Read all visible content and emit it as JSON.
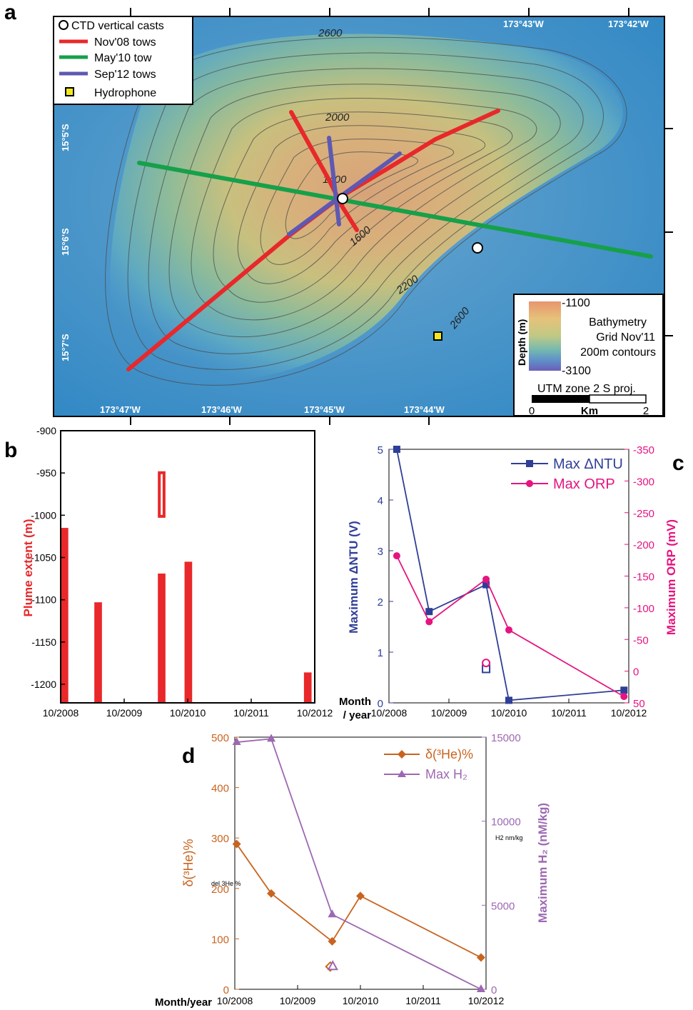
{
  "panel_letters": [
    "a",
    "b",
    "c",
    "d"
  ],
  "map": {
    "legend": [
      {
        "label": "CTD vertical casts",
        "symbol": "open-circle"
      },
      {
        "label": "Nov'08 tows",
        "color": "#e8282a"
      },
      {
        "label": "May'10 tow",
        "color": "#16a04a"
      },
      {
        "label": "Sep'12 tows",
        "color": "#5d59b3"
      },
      {
        "label": "Hydrophone",
        "symbol": "yellow-square"
      }
    ],
    "lon_labels": [
      "173°47'W",
      "173°46'W",
      "173°45'W",
      "173°44'W",
      "173°43'W",
      "173°42'W"
    ],
    "lat_labels": [
      "15°5'S",
      "15°6'S",
      "15°7'S"
    ],
    "contour_labels": [
      "2600",
      "2000",
      "1400",
      "1600",
      "2200",
      "2600"
    ],
    "colorbar": {
      "title": "Depth (m)",
      "top_label": "-1100",
      "bottom_label": "-3100",
      "lines": [
        "Bathymetry",
        "Grid Nov'11",
        "200m contours"
      ],
      "projection": "UTM zone 2 S proj.",
      "scale_labels": [
        "0",
        "Km",
        "2"
      ]
    }
  },
  "panels": {
    "b": {
      "type": "bar",
      "ylabel": "Plume extent (m)",
      "yticks": [
        "-900",
        "-950",
        "-1000",
        "-1050",
        "-1100",
        "-1150",
        "-1200"
      ],
      "xticks": [
        "10/2008",
        "10/2009",
        "10/2010",
        "10/2011",
        "10/2012"
      ]
    },
    "c": {
      "type": "line",
      "ylabel_left": "Maximum ΔNTU (V)",
      "ylabel_right": "Maximum ORP (mV)",
      "yticks_left": [
        "0",
        "1",
        "2",
        "3",
        "4",
        "5"
      ],
      "yticks_right": [
        "50",
        "0",
        "-50",
        "-100",
        "-150",
        "-200",
        "-250",
        "-300",
        "-350"
      ],
      "xticks": [
        "10/2008",
        "10/2009",
        "10/2010",
        "10/2011",
        "10/2012"
      ],
      "month_year_label": [
        "Month",
        "/ year"
      ],
      "legend": [
        "Max ΔNTU",
        "Max ORP"
      ]
    },
    "d": {
      "type": "line",
      "ylabel_left": "δ(³He)%",
      "ylabel_right": "Maximum H₂ (nM/kg)",
      "yticks_left": [
        "0",
        "100",
        "200",
        "300",
        "400",
        "500"
      ],
      "yticks_right": [
        "0",
        "5000",
        "10000",
        "15000"
      ],
      "xticks": [
        "10/2008",
        "10/2009",
        "10/2010",
        "10/2011",
        "10/2012"
      ],
      "month_year_label": "Month/year",
      "legend": [
        "δ(³He)%",
        "Max H₂"
      ],
      "small_notes": [
        "del 3He %",
        "H2 nm/kg"
      ]
    }
  },
  "chart_data": [
    {
      "panel": "b",
      "type": "bar",
      "xlabel": "",
      "ylabel": "Plume extent (m)",
      "ylim": [
        -1222,
        -900
      ],
      "xlim": [
        2008.75,
        2012.75
      ],
      "bars": [
        {
          "x_start": 2008.75,
          "x_end": 2008.87,
          "top": -1015,
          "bottom": -1222
        },
        {
          "x_start": 2009.28,
          "x_end": 2009.4,
          "top": -1103,
          "bottom": -1222
        },
        {
          "x_start": 2010.28,
          "x_end": 2010.4,
          "top": -1069,
          "bottom": -1222
        },
        {
          "x_start": 2010.7,
          "x_end": 2010.82,
          "top": -1055,
          "bottom": -1222
        },
        {
          "x_start": 2012.58,
          "x_end": 2012.7,
          "top": -1186,
          "bottom": -1222
        }
      ],
      "open_bars": [
        {
          "x_start": 2010.28,
          "x_end": 2010.4,
          "top": -948,
          "bottom": -1003
        }
      ]
    },
    {
      "panel": "c",
      "type": "line",
      "xlim": [
        2008.75,
        2012.75
      ],
      "ylim_left": [
        0,
        5
      ],
      "ylim_right": [
        50,
        -350
      ],
      "series": [
        {
          "name": "Max ΔNTU",
          "axis": "left",
          "color": "#2f3e97",
          "marker": "square",
          "x": [
            2008.88,
            2009.42,
            2010.37,
            2010.75,
            2012.67
          ],
          "y": [
            5.0,
            1.8,
            2.33,
            0.05,
            0.25
          ]
        },
        {
          "name": "Max ORP",
          "axis": "right",
          "color": "#e6147f",
          "marker": "circle",
          "x": [
            2008.88,
            2009.42,
            2010.37,
            2010.75,
            2012.67
          ],
          "y": [
            -182,
            -78,
            -145,
            -65,
            40
          ]
        }
      ],
      "open_points": [
        {
          "series": "Max ΔNTU",
          "x": 2010.37,
          "y": 0.67
        },
        {
          "series": "Max ORP",
          "x": 2010.37,
          "y": -13
        }
      ]
    },
    {
      "panel": "d",
      "type": "line",
      "xlim": [
        2008.75,
        2012.75
      ],
      "ylim_left": [
        0,
        500
      ],
      "ylim_right": [
        0,
        15000
      ],
      "series": [
        {
          "name": "δ(³He)%",
          "axis": "left",
          "color": "#c8641f",
          "marker": "diamond",
          "x": [
            2008.78,
            2009.33,
            2010.3,
            2010.75,
            2012.67
          ],
          "y": [
            288,
            190,
            95,
            185,
            63
          ]
        },
        {
          "name": "Max H₂",
          "axis": "right",
          "color": "#9d68b2",
          "marker": "triangle",
          "x": [
            2008.78,
            2009.33,
            2010.3,
            2012.67
          ],
          "y": [
            14700,
            14900,
            4450,
            0
          ]
        }
      ],
      "open_points": [
        {
          "series": "δ(³He)%",
          "x": 2010.27,
          "y": 45
        },
        {
          "series": "Max H₂",
          "x": 2010.31,
          "y": 1350
        }
      ]
    }
  ]
}
